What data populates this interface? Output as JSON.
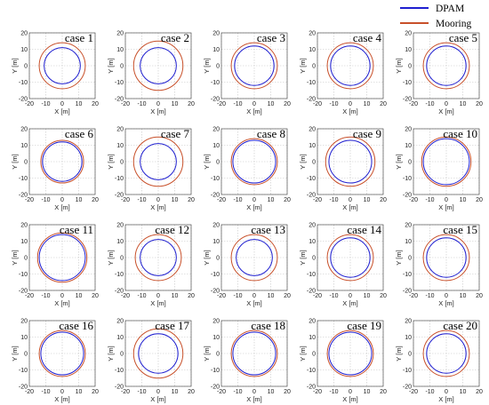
{
  "legend": [
    {
      "label": "DPAM",
      "color": "#1f1fd0"
    },
    {
      "label": "Mooring",
      "color": "#c8502a"
    }
  ],
  "chart_data": {
    "type": "scatter",
    "layout": "small-multiples grid",
    "rows": 4,
    "cols": 5,
    "xlabel": "X [m]",
    "ylabel": "Y [m]",
    "xlim": [
      -20,
      20
    ],
    "ylim": [
      -20,
      20
    ],
    "xticks": [
      -20,
      -10,
      0,
      10,
      20
    ],
    "yticks": [
      -20,
      -10,
      0,
      10,
      20
    ],
    "grid": true,
    "legend_position": "top-right",
    "panels": [
      {
        "title": "case 1",
        "dpam_radius": 11,
        "mooring_radius": 14
      },
      {
        "title": "case 2",
        "dpam_radius": 11,
        "mooring_radius": 15
      },
      {
        "title": "case 3",
        "dpam_radius": 12,
        "mooring_radius": 14
      },
      {
        "title": "case 4",
        "dpam_radius": 12,
        "mooring_radius": 14
      },
      {
        "title": "case 5",
        "dpam_radius": 12,
        "mooring_radius": 14
      },
      {
        "title": "case 6",
        "dpam_radius": 12,
        "mooring_radius": 13
      },
      {
        "title": "case 7",
        "dpam_radius": 11,
        "mooring_radius": 15
      },
      {
        "title": "case 8",
        "dpam_radius": 13,
        "mooring_radius": 14
      },
      {
        "title": "case 9",
        "dpam_radius": 13,
        "mooring_radius": 15
      },
      {
        "title": "case 10",
        "dpam_radius": 14,
        "mooring_radius": 15
      },
      {
        "title": "case 11",
        "dpam_radius": 14,
        "mooring_radius": 15
      },
      {
        "title": "case 12",
        "dpam_radius": 11,
        "mooring_radius": 14
      },
      {
        "title": "case 13",
        "dpam_radius": 11,
        "mooring_radius": 14
      },
      {
        "title": "case 14",
        "dpam_radius": 12,
        "mooring_radius": 14
      },
      {
        "title": "case 15",
        "dpam_radius": 12,
        "mooring_radius": 14
      },
      {
        "title": "case 16",
        "dpam_radius": 13,
        "mooring_radius": 14
      },
      {
        "title": "case 17",
        "dpam_radius": 12,
        "mooring_radius": 15
      },
      {
        "title": "case 18",
        "dpam_radius": 13,
        "mooring_radius": 14
      },
      {
        "title": "case 19",
        "dpam_radius": 13,
        "mooring_radius": 14
      },
      {
        "title": "case 20",
        "dpam_radius": 12,
        "mooring_radius": 14
      }
    ]
  }
}
